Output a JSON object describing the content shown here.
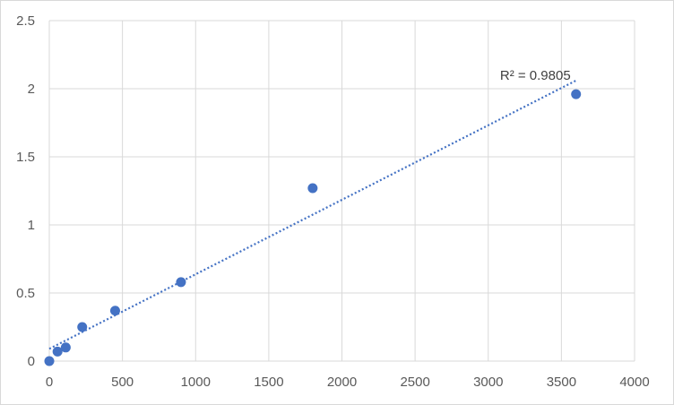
{
  "chart_data": {
    "type": "scatter",
    "title": "",
    "xlabel": "",
    "ylabel": "",
    "xlim": [
      0,
      4000
    ],
    "ylim": [
      0,
      2.5
    ],
    "xticks": [
      0,
      500,
      1000,
      1500,
      2000,
      2500,
      3000,
      3500,
      4000
    ],
    "yticks": [
      0,
      0.5,
      1,
      1.5,
      2,
      2.5
    ],
    "xtick_labels": [
      "0",
      "500",
      "1000",
      "1500",
      "2000",
      "2500",
      "3000",
      "3500",
      "4000"
    ],
    "ytick_labels": [
      "0",
      "0.5",
      "1",
      "1.5",
      "2",
      "2.5"
    ],
    "grid": true,
    "legend": "none",
    "point_color": "#4472c4",
    "trendline_color": "#4472c4",
    "series": [
      {
        "x": [
          0,
          56.25,
          112.5,
          225,
          450,
          900,
          1800,
          3600
        ],
        "y": [
          0.0,
          0.07,
          0.1,
          0.25,
          0.37,
          0.58,
          1.27,
          1.96
        ]
      }
    ],
    "trendline": {
      "type": "linear",
      "style": "dotted",
      "x_range": [
        0,
        3600
      ],
      "y_range": [
        0.09,
        2.06
      ],
      "annotation": "R² = 0.9805"
    }
  }
}
